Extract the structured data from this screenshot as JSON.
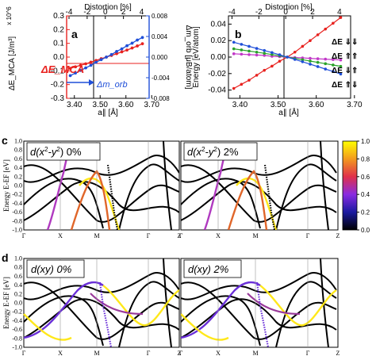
{
  "chart_data": [
    {
      "panel": "a",
      "type": "line",
      "x_top_label": "Distortion [%]",
      "x_top_ticks": [
        -4,
        -2,
        0,
        2,
        4
      ],
      "xlabel": "a∥ [Å]",
      "x_ticks": [
        "3.40",
        "3.50",
        "3.60",
        "3.70"
      ],
      "xlim": [
        3.37,
        3.69
      ],
      "ylabel_left": "ΔE_MCA [J/m³]",
      "y_multiplier": "x 10^6",
      "y_left_ticks": [
        "-0.3",
        "-0.2",
        "-0.1",
        "0.0",
        "0.1",
        "0.2",
        "0.3"
      ],
      "ylim_left": [
        -0.3,
        0.3
      ],
      "ylabel_right": "Δm_orb [μB/atom]",
      "y_right_ticks": [
        "-0.008",
        "-0.004",
        "0.000",
        "0.004",
        "0.008"
      ],
      "ylim_right": [
        -0.008,
        0.008
      ],
      "annotations": [
        "ΔE_MCA",
        "Δm_orb"
      ],
      "series": [
        {
          "color": "#e8221f",
          "axis": "left",
          "x": [
            3.384,
            3.404,
            3.424,
            3.444,
            3.464,
            3.484,
            3.504,
            3.524,
            3.544,
            3.564,
            3.584,
            3.604,
            3.624,
            3.644,
            3.664
          ],
          "y": [
            -0.082,
            -0.071,
            -0.06,
            -0.049,
            -0.037,
            -0.025,
            -0.012,
            0.0,
            0.012,
            0.025,
            0.038,
            0.051,
            0.066,
            0.081,
            0.097
          ]
        },
        {
          "color": "#1f4fd8",
          "axis": "right",
          "x": [
            3.384,
            3.404,
            3.424,
            3.444,
            3.464,
            3.484,
            3.504,
            3.524,
            3.544,
            3.564,
            3.584,
            3.604,
            3.624,
            3.644,
            3.664
          ],
          "y": [
            -0.0036,
            -0.0031,
            -0.0026,
            -0.0021,
            -0.0016,
            -0.001,
            -0.0005,
            0.0,
            0.0005,
            0.0011,
            0.0016,
            0.0022,
            0.0027,
            0.0033,
            0.0038
          ]
        }
      ]
    },
    {
      "panel": "b",
      "type": "line",
      "x_top_label": "Distortion [%]",
      "x_top_ticks": [
        -4,
        -2,
        0,
        2,
        4
      ],
      "xlabel": "a∥ [Å]",
      "x_ticks": [
        "3.40",
        "3.50",
        "3.60",
        "3.70"
      ],
      "xlim": [
        3.37,
        3.69
      ],
      "ylabel": "Energy [eV/atom]",
      "y_ticks": [
        "-0.04",
        "-0.02",
        "0.00",
        "0.02",
        "0.04"
      ],
      "ylim": [
        -0.05,
        0.05
      ],
      "series": [
        {
          "name": "ΔE ⇓⇓",
          "color": "#e8221f",
          "x": [
            3.384,
            3.404,
            3.424,
            3.444,
            3.464,
            3.484,
            3.504,
            3.524,
            3.544,
            3.564,
            3.584,
            3.604,
            3.624,
            3.644,
            3.664
          ],
          "y": [
            -0.038,
            -0.033,
            -0.028,
            -0.022,
            -0.016,
            -0.011,
            -0.005,
            0.0,
            0.006,
            0.013,
            0.02,
            0.027,
            0.034,
            0.041,
            0.048
          ]
        },
        {
          "name": "ΔE ⇑⇑",
          "color": "#c238c8",
          "x": [
            3.384,
            3.404,
            3.424,
            3.444,
            3.464,
            3.484,
            3.504,
            3.524,
            3.544,
            3.564,
            3.584,
            3.604,
            3.624,
            3.644,
            3.664
          ],
          "y": [
            0.004,
            0.0035,
            0.003,
            0.0025,
            0.002,
            0.001,
            0.0005,
            0.0,
            -0.0005,
            -0.001,
            -0.0015,
            -0.002,
            -0.0025,
            -0.003,
            -0.0035
          ]
        },
        {
          "name": "ΔE ⇓⇑",
          "color": "#2aa32a",
          "x": [
            3.384,
            3.404,
            3.424,
            3.444,
            3.464,
            3.484,
            3.504,
            3.524,
            3.544,
            3.564,
            3.584,
            3.604,
            3.624,
            3.644,
            3.664
          ],
          "y": [
            0.01,
            0.0087,
            0.0073,
            0.006,
            0.0046,
            0.0031,
            0.0016,
            0.0,
            -0.0016,
            -0.0032,
            -0.0048,
            -0.0064,
            -0.008,
            -0.0096,
            -0.0112
          ]
        },
        {
          "name": "ΔE ⇑⇓",
          "color": "#1f4fd8",
          "x": [
            3.384,
            3.404,
            3.424,
            3.444,
            3.464,
            3.484,
            3.504,
            3.524,
            3.544,
            3.564,
            3.584,
            3.604,
            3.624,
            3.644,
            3.664
          ],
          "y": [
            0.018,
            0.0155,
            0.013,
            0.0105,
            0.008,
            0.0055,
            0.0028,
            0.0,
            -0.0028,
            -0.0057,
            -0.0086,
            -0.0115,
            -0.0145,
            -0.0175,
            -0.0205
          ]
        }
      ]
    },
    {
      "panel": "c",
      "type": "line",
      "ylabel": "Energy E-EF [eV]",
      "y_ticks": [
        "-1.0",
        "-0.8",
        "-0.6",
        "-0.4",
        "-0.2",
        "0.0",
        "0.2",
        "0.4",
        "0.6",
        "0.8",
        "1.0"
      ],
      "kpath": [
        "Γ",
        "X",
        "M",
        "Γ",
        "Z"
      ],
      "subplots": [
        {
          "title": "d(x²-y²) 0%",
          "title_main": "d(x",
          "title_sup": "2",
          "title_mid": "-y",
          "title_end": ") 0%"
        },
        {
          "title": "d(x²-y²) 2%",
          "title_main": "d(x",
          "title_sup": "2",
          "title_mid": "-y",
          "title_end": ") 2%"
        }
      ],
      "colorbar": {
        "ticks": [
          "0.0",
          "0.2",
          "0.4",
          "0.6",
          "0.8",
          "1.0"
        ],
        "range": [
          0,
          1
        ]
      }
    },
    {
      "panel": "d",
      "type": "line",
      "ylabel": "Energy E-EF [eV]",
      "y_ticks": [
        "-1.0",
        "-0.8",
        "-0.6",
        "-0.4",
        "-0.2",
        "0.0",
        "0.2",
        "0.4",
        "0.6",
        "0.8",
        "1.0"
      ],
      "kpath": [
        "Γ",
        "X",
        "M",
        "Γ",
        "Z"
      ],
      "subplots": [
        {
          "title": "d(xy) 0%"
        },
        {
          "title": "d(xy) 2%"
        }
      ]
    }
  ],
  "panel_labels": [
    "a",
    "b",
    "c",
    "d"
  ]
}
